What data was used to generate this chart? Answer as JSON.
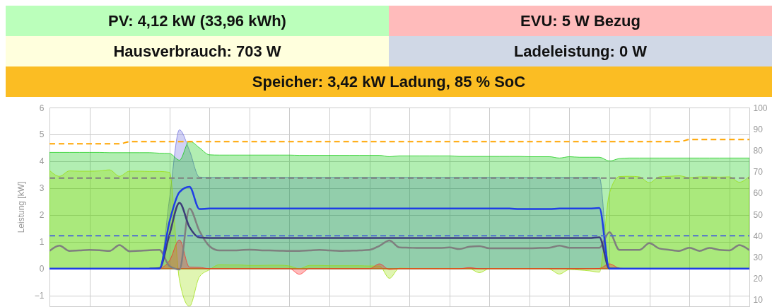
{
  "chart_data": [
    {
      "type": "other",
      "annotations": [
        "PV: 4,12 kW (33,96 kWh)",
        "EVU: 5 W Bezug",
        "Hausverbrauch: 703 W",
        "Ladeleistung: 0 W",
        "Speicher: 3,42 kW Ladung, 85 % SoC"
      ],
      "colors": [
        "#bbffbb",
        "#ffbbbb",
        "#ffffdd",
        "#d0d8e6",
        "#fbbd23"
      ]
    },
    {
      "type": "line",
      "ylabel": "Leistung [kW]",
      "grid": true,
      "categories": [
        null,
        null,
        null,
        null,
        null,
        null,
        null,
        null,
        null,
        null,
        null,
        null,
        null,
        null,
        null,
        null,
        null,
        null,
        null,
        null,
        null,
        null,
        null,
        null,
        null,
        null,
        null,
        null,
        null,
        null,
        null,
        null,
        null,
        null,
        null,
        null,
        null,
        null,
        null,
        null,
        null,
        null,
        null,
        null,
        null,
        null,
        null,
        null,
        null,
        null,
        null,
        null,
        null,
        null,
        null,
        null,
        null,
        null,
        null,
        null,
        null,
        null,
        null,
        null,
        null,
        null,
        null,
        null,
        null,
        null,
        null
      ],
      "ylim": [
        -1.4,
        6
      ],
      "yticks": [
        -1,
        0,
        1,
        2,
        3,
        4,
        5,
        6
      ],
      "y2lim": [
        7,
        100
      ],
      "y2ticks": [
        10,
        20,
        30,
        40,
        50,
        60,
        70,
        80,
        90,
        100
      ],
      "series": [
        {
          "type": "area",
          "color": "#6666dd",
          "values": [
            0,
            0,
            0,
            0,
            0,
            0,
            0,
            0,
            0,
            0,
            0,
            0,
            2.6,
            5.17,
            4.4,
            3.41,
            3.4,
            3.4,
            3.4,
            3.4,
            3.4,
            3.4,
            3.4,
            3.4,
            3.4,
            3.4,
            3.4,
            3.4,
            3.4,
            3.4,
            3.4,
            3.4,
            3.4,
            3.4,
            3.4,
            3.4,
            3.4,
            3.4,
            3.4,
            3.4,
            3.4,
            3.4,
            3.4,
            3.4,
            3.4,
            3.4,
            3.4,
            3.4,
            3.4,
            3.4,
            3.4,
            3.4,
            3.4,
            3.4,
            3.4,
            3.4,
            0,
            0,
            0,
            0,
            0,
            0,
            0,
            0,
            0,
            0,
            0,
            0,
            0,
            0,
            0
          ]
        },
        {
          "type": "area",
          "color": "#00c800",
          "values": [
            4.33,
            4.33,
            4.33,
            4.33,
            4.33,
            4.33,
            4.32,
            4.32,
            4.32,
            4.32,
            4.32,
            4.3,
            4.29,
            4.04,
            4.75,
            4.5,
            4.24,
            4.23,
            4.23,
            4.23,
            4.23,
            4.23,
            4.23,
            4.23,
            4.23,
            4.22,
            4.22,
            4.22,
            4.22,
            4.22,
            4.22,
            4.22,
            4.22,
            4.22,
            4.17,
            4.2,
            4.2,
            4.2,
            4.2,
            4.2,
            4.2,
            4.18,
            4.18,
            4.18,
            4.18,
            4.18,
            4.18,
            4.18,
            4.17,
            4.17,
            4.17,
            4.12,
            4.17,
            4.15,
            4.15,
            4.15,
            4.01,
            4.1,
            4.12,
            4.12,
            4.12,
            4.12,
            4.12,
            4.12,
            4.12,
            4.12,
            4.12,
            4.12,
            4.12,
            4.12,
            4.12
          ]
        },
        {
          "type": "area",
          "color": "#99dd00",
          "values": [
            3.66,
            3.44,
            3.64,
            3.63,
            3.63,
            3.64,
            3.68,
            3.44,
            3.63,
            3.63,
            3.62,
            3.62,
            3.59,
            -0.43,
            -1.4,
            -0.3,
            -0.04,
            0.15,
            0.14,
            0.14,
            0.12,
            0.12,
            0.13,
            0.13,
            0.1,
            0,
            0.12,
            0.12,
            0.11,
            0.11,
            0.11,
            0.11,
            0.1,
            0.1,
            -0.36,
            0.02,
            0.01,
            0.01,
            0.01,
            0.01,
            0.01,
            0.01,
            0,
            -0.15,
            0,
            0,
            0,
            0,
            0,
            0,
            -0.02,
            -0.2,
            -0.03,
            -0.05,
            -0.08,
            -0.13,
            2.8,
            3.43,
            3.44,
            3.42,
            3.2,
            3.42,
            3.44,
            3.46,
            3.39,
            3.42,
            3.42,
            3.41,
            3.42,
            3.22,
            3.44
          ]
        },
        {
          "type": "area",
          "color": "#ff2222",
          "values": [
            0,
            0,
            0,
            0,
            0,
            0,
            0,
            0,
            0,
            0,
            0,
            0.02,
            0.3,
            1.07,
            0.06,
            0.05,
            0,
            0,
            0,
            0,
            0,
            0,
            0,
            0,
            0,
            -0.21,
            0,
            0,
            0,
            0,
            0,
            0,
            0,
            0.18,
            -0.03,
            0,
            0,
            0,
            0,
            0,
            0,
            0,
            0.04,
            0,
            0,
            0,
            0,
            0,
            0,
            0,
            0,
            0,
            0,
            0,
            0,
            0.01,
            0.18,
            0.02,
            0,
            0,
            0,
            0,
            0,
            0,
            0,
            0,
            0,
            0,
            0,
            0,
            0
          ]
        },
        {
          "type": "line",
          "color": "#7f7f7f",
          "values": [
            0.66,
            0.86,
            0.66,
            0.68,
            0.7,
            0.69,
            0.66,
            0.88,
            0.65,
            0.67,
            0.69,
            0.7,
            0.1,
            -0.03,
            2.24,
            1.4,
            0.84,
            0.68,
            0.68,
            0.69,
            0.71,
            0.69,
            0.68,
            0.67,
            0.66,
            0.66,
            0.68,
            0.7,
            0.68,
            0.66,
            0.67,
            0.68,
            0.7,
            0.85,
            1.05,
            0.79,
            0.78,
            0.77,
            0.77,
            0.77,
            0.79,
            0.73,
            0.82,
            0.84,
            0.76,
            0.76,
            0.76,
            0.76,
            0.76,
            0.77,
            0.78,
            0.86,
            0.78,
            0.78,
            0.78,
            0.78,
            1.36,
            0.7,
            0.7,
            0.7,
            0.95,
            0.75,
            0.7,
            0.66,
            0.78,
            0.66,
            0.77,
            0.7,
            0.68,
            0.88,
            0.69
          ]
        },
        {
          "type": "line",
          "color": "#3c3c78",
          "values": [
            null,
            null,
            null,
            null,
            null,
            null,
            null,
            null,
            null,
            null,
            0,
            0.02,
            1.27,
            2.45,
            1.55,
            1.16,
            1.14,
            1.14,
            1.14,
            1.14,
            1.14,
            1.14,
            1.14,
            1.14,
            1.14,
            1.14,
            1.14,
            1.14,
            1.14,
            1.14,
            1.14,
            1.14,
            1.14,
            1.14,
            1.14,
            1.14,
            1.14,
            1.14,
            1.14,
            1.14,
            1.14,
            1.14,
            1.14,
            1.14,
            1.14,
            1.14,
            1.14,
            1.14,
            1.14,
            1.14,
            1.14,
            1.14,
            1.14,
            1.14,
            1.14,
            1.17,
            0,
            0,
            null,
            null,
            null,
            null,
            null,
            null,
            null,
            null,
            null,
            null,
            null,
            null,
            null
          ]
        },
        {
          "type": "line",
          "color": "#1f3ee6",
          "values": [
            0,
            0,
            0,
            0,
            0,
            0,
            0,
            0,
            0,
            0,
            0,
            0,
            1.75,
            2.85,
            3.05,
            2.22,
            2.24,
            2.24,
            2.24,
            2.24,
            2.24,
            2.24,
            2.24,
            2.24,
            2.24,
            2.24,
            2.24,
            2.24,
            2.24,
            2.24,
            2.24,
            2.24,
            2.24,
            2.24,
            2.24,
            2.24,
            2.24,
            2.24,
            2.24,
            2.24,
            2.24,
            2.24,
            2.24,
            2.24,
            2.24,
            2.24,
            2.24,
            2.22,
            2.22,
            2.22,
            2.22,
            2.24,
            2.24,
            2.24,
            2.24,
            2.26,
            0,
            0,
            0,
            0,
            0,
            0,
            0,
            0,
            0,
            0,
            0,
            0,
            0,
            0,
            0
          ]
        },
        {
          "type": "line",
          "axis": "y2",
          "line_style": "dashed",
          "color": "#ffa500",
          "values": [
            83,
            83,
            83,
            83,
            83,
            83,
            83,
            83,
            84,
            84,
            84,
            84,
            84,
            84,
            84,
            84,
            84,
            84,
            84,
            84,
            84,
            84,
            84,
            84,
            84,
            84,
            84,
            84,
            84,
            84,
            84,
            84,
            84,
            84,
            84,
            84,
            84,
            84,
            84,
            84,
            84,
            84,
            84,
            84,
            84,
            84,
            84,
            84,
            84,
            84,
            84,
            84,
            84,
            84,
            84,
            84,
            84,
            84,
            84,
            84,
            84,
            84,
            84,
            84,
            85,
            85,
            85,
            85,
            85,
            85,
            85
          ]
        },
        {
          "type": "line",
          "axis": "y2",
          "line_style": "dashed",
          "color": "#7f7f7f",
          "values": [
            67,
            67,
            67,
            67,
            67,
            67,
            67,
            67,
            67,
            67,
            67,
            67,
            67,
            67,
            67,
            67,
            67,
            67,
            67,
            67,
            67,
            67,
            67,
            67,
            67,
            67,
            67,
            67,
            67,
            67,
            67,
            67,
            67,
            67,
            67,
            67,
            67,
            67,
            67,
            67,
            67,
            67,
            67,
            67,
            67,
            67,
            67,
            67,
            67,
            67,
            67,
            67,
            67,
            67,
            67,
            67,
            67,
            67,
            67,
            67,
            67,
            67,
            67,
            67,
            67,
            67,
            67,
            67,
            67,
            67,
            67
          ]
        },
        {
          "type": "line",
          "axis": "y2",
          "line_style": "dashed",
          "color": "#4f6fd0",
          "values": [
            40,
            40,
            40,
            40,
            40,
            40,
            40,
            40,
            40,
            40,
            40,
            40,
            40,
            40,
            40,
            40,
            40,
            40,
            40,
            40,
            40,
            40,
            40,
            40,
            40,
            40,
            40,
            40,
            40,
            40,
            40,
            40,
            40,
            40,
            40,
            40,
            40,
            40,
            40,
            40,
            40,
            40,
            40,
            40,
            40,
            40,
            40,
            40,
            40,
            40,
            40,
            40,
            40,
            40,
            40,
            40,
            40,
            40,
            40,
            40,
            40,
            40,
            40,
            40,
            40,
            40,
            40,
            40,
            40,
            40,
            40
          ]
        }
      ]
    }
  ]
}
